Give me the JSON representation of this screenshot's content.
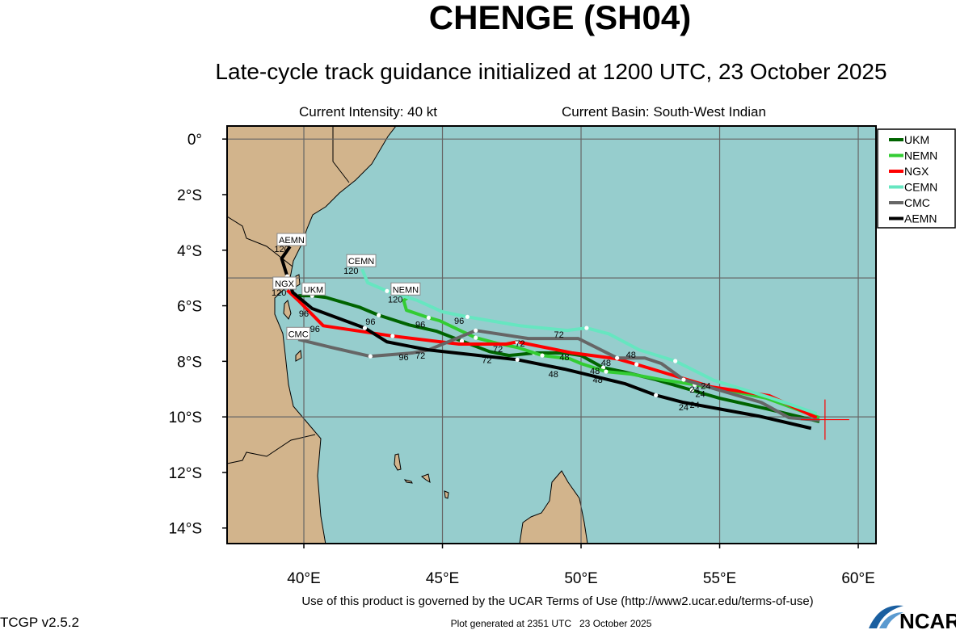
{
  "title": "CHENGE (SH04)",
  "subtitle": "Late-cycle track guidance initialized at 1200 UTC, 23 October 2025",
  "current_intensity": "Current Intensity: 40 kt",
  "current_basin": "Current Basin: South-West Indian",
  "footer": {
    "terms": "Use of this product is governed by the UCAR Terms of Use (http://www2.ucar.edu/terms-of-use)",
    "version": "TCGP v2.5.2",
    "generated": "Plot generated at 2351 UTC   23 October 2025",
    "logo": "NCAR"
  },
  "colors": {
    "ocean": "#96cdcd",
    "land": "#d2b48c",
    "grid": "#666666",
    "current_marker": "#ff0000"
  },
  "chart_data": {
    "type": "line",
    "title": "CHENGE (SH04)",
    "xlim": [
      37.23,
      60.64
    ],
    "ylim": [
      -14.56,
      0.47
    ],
    "x_ticks": [
      {
        "v": 40,
        "label": "40°E"
      },
      {
        "v": 45,
        "label": "45°E"
      },
      {
        "v": 50,
        "label": "50°E"
      },
      {
        "v": 55,
        "label": "55°E"
      },
      {
        "v": 60,
        "label": "60°E"
      }
    ],
    "y_ticks": [
      {
        "v": 0,
        "label": "0°"
      },
      {
        "v": -2,
        "label": "2°S"
      },
      {
        "v": -4,
        "label": "4°S"
      },
      {
        "v": -6,
        "label": "6°S"
      },
      {
        "v": -8,
        "label": "8°S"
      },
      {
        "v": -10,
        "label": "10°S"
      },
      {
        "v": -12,
        "label": "12°S"
      },
      {
        "v": -14,
        "label": "14°S"
      }
    ],
    "grid_lon": [
      40,
      45,
      50,
      55,
      60
    ],
    "grid_lat": [
      0,
      -5,
      -10
    ],
    "legend_position": "right",
    "current_position": [
      58.8,
      -10.1
    ],
    "series": [
      {
        "name": "UKM",
        "color": "#006400",
        "label_at": [
          40.35,
          -5.41
        ],
        "points": [
          [
            58.6,
            -10.17
          ],
          [
            56.7,
            -9.71
          ],
          [
            55.0,
            -9.33
          ],
          [
            54.0,
            -9.04
          ],
          [
            52.7,
            -8.66
          ],
          [
            51.5,
            -8.37
          ],
          [
            50.8,
            -8.23
          ],
          [
            50.0,
            -7.79
          ],
          [
            49.4,
            -7.7
          ],
          [
            48.3,
            -7.7
          ],
          [
            47.4,
            -7.79
          ],
          [
            46.7,
            -7.65
          ],
          [
            45.7,
            -7.27
          ],
          [
            44.8,
            -6.92
          ],
          [
            43.8,
            -6.69
          ],
          [
            42.7,
            -6.34
          ],
          [
            42.0,
            -6.05
          ],
          [
            40.8,
            -5.7
          ],
          [
            40.3,
            -5.64
          ],
          [
            39.8,
            -5.64
          ]
        ]
      },
      {
        "name": "NEMN",
        "color": "#33cc33",
        "label_at": [
          43.67,
          -5.41
        ],
        "points": [
          [
            58.6,
            -10.03
          ],
          [
            56.7,
            -9.33
          ],
          [
            55.3,
            -9.04
          ],
          [
            54.1,
            -8.84
          ],
          [
            52.9,
            -8.66
          ],
          [
            51.8,
            -8.46
          ],
          [
            50.9,
            -8.37
          ],
          [
            50.0,
            -8.08
          ],
          [
            49.6,
            -7.91
          ],
          [
            48.6,
            -7.79
          ],
          [
            47.7,
            -7.5
          ],
          [
            47.0,
            -7.36
          ],
          [
            46.2,
            -7.15
          ],
          [
            45.7,
            -6.92
          ],
          [
            44.9,
            -6.54
          ],
          [
            44.5,
            -6.43
          ],
          [
            43.7,
            -6.16
          ],
          [
            43.6,
            -5.81
          ],
          [
            43.8,
            -5.67
          ]
        ]
      },
      {
        "name": "NGX",
        "color": "#ff0000",
        "label_at": [
          39.3,
          -5.2
        ],
        "points": [
          [
            58.5,
            -10.03
          ],
          [
            56.8,
            -9.24
          ],
          [
            54.7,
            -8.92
          ],
          [
            52.0,
            -8.11
          ],
          [
            51.3,
            -7.91
          ],
          [
            49.7,
            -7.7
          ],
          [
            47.7,
            -7.3
          ],
          [
            47.3,
            -7.38
          ],
          [
            45.6,
            -7.38
          ],
          [
            43.2,
            -7.09
          ],
          [
            40.7,
            -6.72
          ],
          [
            39.8,
            -5.81
          ],
          [
            39.4,
            -5.44
          ]
        ]
      },
      {
        "name": "CEMN",
        "color": "#66e6c0",
        "label_at": [
          42.07,
          -4.39
        ],
        "points": [
          [
            58.5,
            -9.88
          ],
          [
            56.8,
            -9.3
          ],
          [
            54.8,
            -8.69
          ],
          [
            53.4,
            -7.99
          ],
          [
            52.1,
            -7.59
          ],
          [
            51.0,
            -7.01
          ],
          [
            50.2,
            -6.8
          ],
          [
            49.5,
            -6.89
          ],
          [
            47.8,
            -6.72
          ],
          [
            45.9,
            -6.4
          ],
          [
            45.0,
            -6.22
          ],
          [
            44.1,
            -5.81
          ],
          [
            43.0,
            -5.47
          ],
          [
            42.3,
            -5.17
          ],
          [
            42.1,
            -4.68
          ]
        ]
      },
      {
        "name": "CMC",
        "color": "#666666",
        "label_at": [
          39.8,
          -7.01
        ],
        "points": [
          [
            58.6,
            -10.12
          ],
          [
            57.5,
            -10.03
          ],
          [
            56.5,
            -9.48
          ],
          [
            53.7,
            -8.66
          ],
          [
            52.9,
            -8.08
          ],
          [
            52.3,
            -7.88
          ],
          [
            51.3,
            -7.88
          ],
          [
            49.9,
            -7.18
          ],
          [
            48.1,
            -7.18
          ],
          [
            46.2,
            -6.89
          ],
          [
            44.5,
            -7.59
          ],
          [
            43.9,
            -7.7
          ],
          [
            42.4,
            -7.82
          ],
          [
            41.0,
            -7.5
          ],
          [
            39.8,
            -7.21
          ]
        ]
      },
      {
        "name": "AEMN",
        "color": "#000000",
        "label_at": [
          39.56,
          -3.63
        ],
        "points": [
          [
            58.3,
            -10.41
          ],
          [
            56.4,
            -9.97
          ],
          [
            53.7,
            -9.48
          ],
          [
            52.7,
            -9.22
          ],
          [
            51.6,
            -8.81
          ],
          [
            49.4,
            -8.28
          ],
          [
            47.7,
            -7.94
          ],
          [
            44.5,
            -7.59
          ],
          [
            43.0,
            -7.3
          ],
          [
            42.2,
            -6.8
          ],
          [
            40.3,
            -6.1
          ],
          [
            39.6,
            -5.52
          ],
          [
            39.4,
            -4.94
          ],
          [
            39.2,
            -4.3
          ],
          [
            39.5,
            -3.87
          ]
        ]
      }
    ],
    "hour_labels": [
      {
        "text": "120",
        "lon": 39.2,
        "lat": -3.95
      },
      {
        "text": "120",
        "lon": 39.1,
        "lat": -5.52
      },
      {
        "text": "120",
        "lon": 41.7,
        "lat": -4.74
      },
      {
        "text": "120",
        "lon": 43.3,
        "lat": -5.76
      },
      {
        "text": "96",
        "lon": 40.0,
        "lat": -6.28
      },
      {
        "text": "96",
        "lon": 40.4,
        "lat": -6.83
      },
      {
        "text": "96",
        "lon": 42.4,
        "lat": -6.57
      },
      {
        "text": "96",
        "lon": 44.2,
        "lat": -6.66
      },
      {
        "text": "96",
        "lon": 45.6,
        "lat": -6.54
      },
      {
        "text": "96",
        "lon": 43.6,
        "lat": -7.85
      },
      {
        "text": "72",
        "lon": 44.2,
        "lat": -7.79
      },
      {
        "text": "72",
        "lon": 46.6,
        "lat": -7.94
      },
      {
        "text": "72",
        "lon": 47.0,
        "lat": -7.56
      },
      {
        "text": "72",
        "lon": 47.8,
        "lat": -7.35
      },
      {
        "text": "72",
        "lon": 49.2,
        "lat": -7.03
      },
      {
        "text": "48",
        "lon": 49.0,
        "lat": -8.46
      },
      {
        "text": "48",
        "lon": 49.4,
        "lat": -7.85
      },
      {
        "text": "48",
        "lon": 50.5,
        "lat": -8.34
      },
      {
        "text": "48",
        "lon": 50.6,
        "lat": -8.66
      },
      {
        "text": "48",
        "lon": 50.9,
        "lat": -8.05
      },
      {
        "text": "48",
        "lon": 51.8,
        "lat": -7.76
      },
      {
        "text": "24",
        "lon": 53.7,
        "lat": -9.65
      },
      {
        "text": "24",
        "lon": 54.1,
        "lat": -9.56
      },
      {
        "text": "24",
        "lon": 54.5,
        "lat": -8.87
      },
      {
        "text": "24",
        "lon": 54.1,
        "lat": -9.01
      },
      {
        "text": "24",
        "lon": 54.3,
        "lat": -9.16
      }
    ]
  }
}
